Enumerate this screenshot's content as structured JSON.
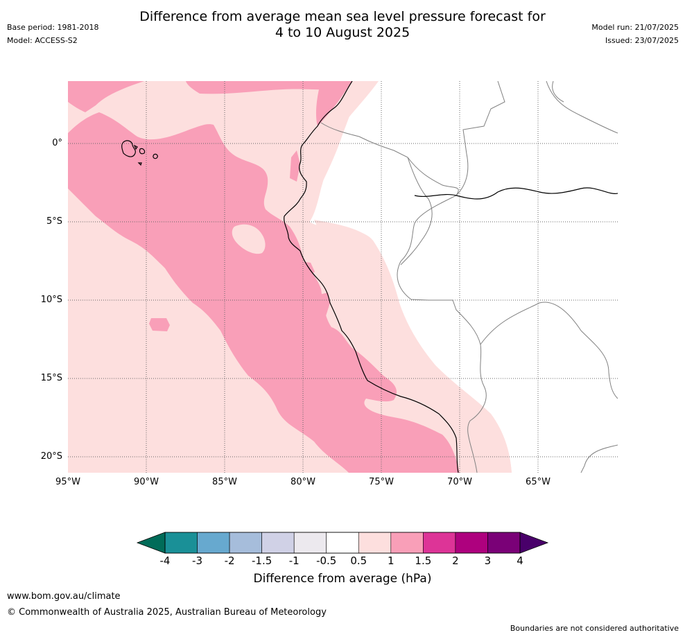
{
  "header": {
    "title_line1": "Difference from average mean sea level pressure forecast for",
    "title_line2": "4 to 10 August 2025",
    "base_period": "Base period: 1981-2018",
    "model": "Model: ACCESS-S2",
    "model_run": "Model run: 21/07/2025",
    "issued": "Issued: 23/07/2025"
  },
  "map": {
    "lat_labels": [
      "0°",
      "5°S",
      "10°S",
      "15°S",
      "20°S"
    ],
    "lon_labels": [
      "95°W",
      "90°W",
      "85°W",
      "80°W",
      "75°W",
      "70°W",
      "65°W"
    ],
    "colors": {
      "light_pink": "#fddfde",
      "pink": "#f99fb8",
      "coast": "#000000",
      "border": "#808080",
      "grid": "#666666"
    }
  },
  "colorbar": {
    "title": "Difference from average (hPa)",
    "tick_labels": [
      "-4",
      "-3",
      "-2",
      "-1.5",
      "-1",
      "-0.5",
      "0.5",
      "1",
      "1.5",
      "2",
      "3",
      "4"
    ],
    "segment_colors": [
      "#1a9097",
      "#67a9cf",
      "#a6bddb",
      "#d0d1e6",
      "#ece9ee",
      "#ffffff",
      "#fddfde",
      "#f99fb8",
      "#dd3497",
      "#ae017e",
      "#7a0177"
    ],
    "low_extend_color": "#016c59",
    "high_extend_color": "#49006a"
  },
  "footer": {
    "website": "www.bom.gov.au/climate",
    "copyright": "© Commonwealth of Australia 2025, Australian Bureau of Meteorology",
    "disclaimer": "Boundaries are not considered authoritative"
  }
}
